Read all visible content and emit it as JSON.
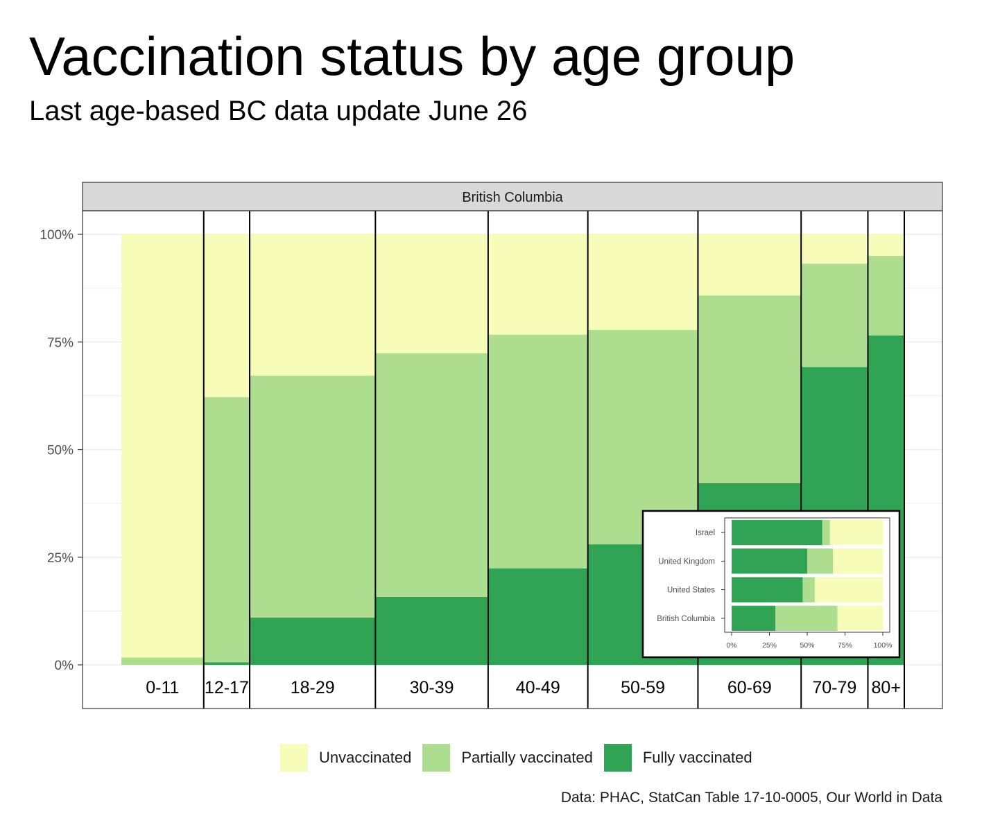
{
  "title": "Vaccination status by age group",
  "subtitle": "Last age-based BC data update June 26",
  "caption": "Data: PHAC, StatCan Table 17-10-0005, Our World in Data",
  "colors": {
    "unvaccinated": "#f7fcb9",
    "partial": "#addd8e",
    "full": "#31a354",
    "strip": "#d9d9d9",
    "grid": "#ebebeb"
  },
  "chart_data": [
    {
      "type": "bar",
      "subtype": "marimekko-stacked-100",
      "facet_label": "British Columbia",
      "categories": [
        "0-11",
        "12-17",
        "18-29",
        "30-39",
        "40-49",
        "50-59",
        "60-69",
        "70-79",
        "80+"
      ],
      "category_widths": [
        0.095,
        0.053,
        0.145,
        0.13,
        0.115,
        0.127,
        0.119,
        0.077,
        0.042
      ],
      "series": [
        {
          "name": "Fully vaccinated",
          "values": [
            0,
            0.6,
            11,
            15.8,
            22.4,
            28,
            42.2,
            69.2,
            76.5
          ]
        },
        {
          "name": "Partially vaccinated",
          "values": [
            1.7,
            61.6,
            56.2,
            56.6,
            54.3,
            49.8,
            43.6,
            24,
            18.5
          ]
        },
        {
          "name": "Unvaccinated",
          "values": [
            98.3,
            37.8,
            32.8,
            27.6,
            23.3,
            22.2,
            14.2,
            6.8,
            5
          ]
        }
      ],
      "y_ticks": [
        "0%",
        "25%",
        "50%",
        "75%",
        "100%"
      ],
      "ylim": [
        0,
        100
      ],
      "grid": true,
      "legend": {
        "position": "bottom",
        "labels": [
          "Unvaccinated",
          "Partially vaccinated",
          "Fully vaccinated"
        ]
      }
    },
    {
      "type": "bar",
      "subtype": "horizontal-stacked-100",
      "location": "inset bottom-right",
      "categories": [
        "Israel",
        "United Kingdom",
        "United States",
        "British Columbia"
      ],
      "series": [
        {
          "name": "Fully vaccinated",
          "values": [
            60,
            50,
            47,
            29
          ]
        },
        {
          "name": "Partially vaccinated",
          "values": [
            5,
            17,
            8,
            41
          ]
        },
        {
          "name": "Unvaccinated",
          "values": [
            35,
            33,
            45,
            30
          ]
        }
      ],
      "x_ticks": [
        "0%",
        "25%",
        "50%",
        "75%",
        "100%"
      ],
      "xlim": [
        0,
        100
      ]
    }
  ]
}
